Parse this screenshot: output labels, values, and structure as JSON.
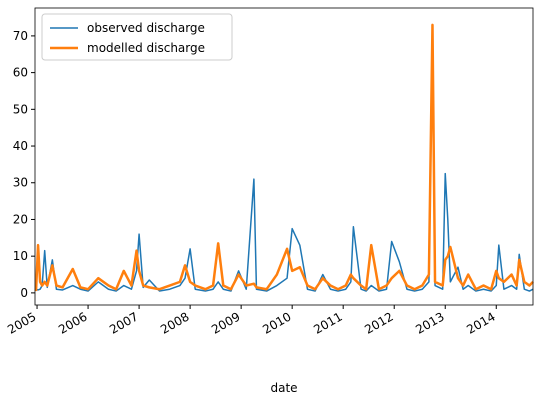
{
  "chart_data": {
    "type": "line",
    "x_label": "date",
    "x": [
      2004.98,
      2005.02,
      2005.06,
      2005.1,
      2005.15,
      2005.2,
      2005.3,
      2005.38,
      2005.5,
      2005.7,
      2005.85,
      2006.0,
      2006.2,
      2006.4,
      2006.55,
      2006.7,
      2006.85,
      2006.95,
      2007.0,
      2007.08,
      2007.2,
      2007.4,
      2007.6,
      2007.8,
      2007.9,
      2008.0,
      2008.1,
      2008.3,
      2008.45,
      2008.55,
      2008.65,
      2008.8,
      2008.95,
      2009.1,
      2009.25,
      2009.3,
      2009.5,
      2009.7,
      2009.9,
      2010.0,
      2010.15,
      2010.3,
      2010.45,
      2010.6,
      2010.75,
      2010.9,
      2011.05,
      2011.15,
      2011.2,
      2011.35,
      2011.45,
      2011.55,
      2011.7,
      2011.85,
      2011.95,
      2012.1,
      2012.25,
      2012.4,
      2012.55,
      2012.68,
      2012.75,
      2012.8,
      2012.95,
      2013.0,
      2013.05,
      2013.1,
      2013.25,
      2013.35,
      2013.45,
      2013.6,
      2013.75,
      2013.9,
      2014.0,
      2014.05,
      2014.15,
      2014.3,
      2014.4,
      2014.45,
      2014.55,
      2014.65,
      2014.72
    ],
    "series": [
      {
        "name": "observed discharge",
        "color": "#1f77b4",
        "width": 1.5,
        "values": [
          1,
          0.8,
          1,
          2,
          11.5,
          1.5,
          9,
          1,
          0.8,
          2,
          1,
          0.5,
          3,
          1,
          0.5,
          2,
          1,
          6,
          16,
          1.5,
          3.5,
          0.5,
          1,
          2,
          4,
          12,
          1,
          0.5,
          1,
          3,
          1,
          0.5,
          6,
          1,
          31,
          1,
          0.5,
          2,
          4,
          17.5,
          13,
          1,
          0.5,
          5,
          1,
          0.5,
          1,
          3,
          18,
          1,
          0.5,
          2,
          0.5,
          1,
          14,
          8.5,
          1,
          0.5,
          1,
          3,
          73,
          2,
          1,
          32.5,
          20,
          3,
          7,
          1,
          2,
          0.5,
          1,
          0.5,
          2,
          13,
          1,
          2,
          1,
          10.5,
          1,
          0.5,
          1
        ]
      },
      {
        "name": "modelled discharge",
        "color": "#ff7f0e",
        "width": 2.5,
        "values": [
          0.5,
          13,
          3,
          2,
          3,
          2,
          7.5,
          2,
          1.5,
          6.5,
          1.5,
          1,
          4,
          2,
          1,
          6,
          2,
          11.5,
          6,
          2,
          1.5,
          1,
          2,
          3,
          7.5,
          3,
          2,
          1,
          2,
          13.5,
          2,
          1,
          5,
          2,
          2.5,
          1.5,
          1,
          5,
          12,
          6,
          7,
          2,
          1,
          4,
          2,
          1,
          2,
          5,
          4,
          2,
          1,
          13,
          1,
          2,
          4,
          6,
          2,
          1,
          2,
          5,
          73,
          3,
          2,
          9,
          10,
          12.5,
          4,
          2,
          5,
          1,
          2,
          1,
          6,
          4,
          3,
          5,
          2,
          9,
          3,
          2,
          3
        ]
      }
    ],
    "xlim": [
      2004.96,
      2014.72
    ],
    "xticks": [
      2005,
      2006,
      2007,
      2008,
      2009,
      2010,
      2011,
      2012,
      2013,
      2014
    ],
    "ylim": [
      -3.3,
      77.6
    ],
    "yticks": [
      0,
      10,
      20,
      30,
      40,
      50,
      60,
      70
    ],
    "legend": "upper left"
  }
}
